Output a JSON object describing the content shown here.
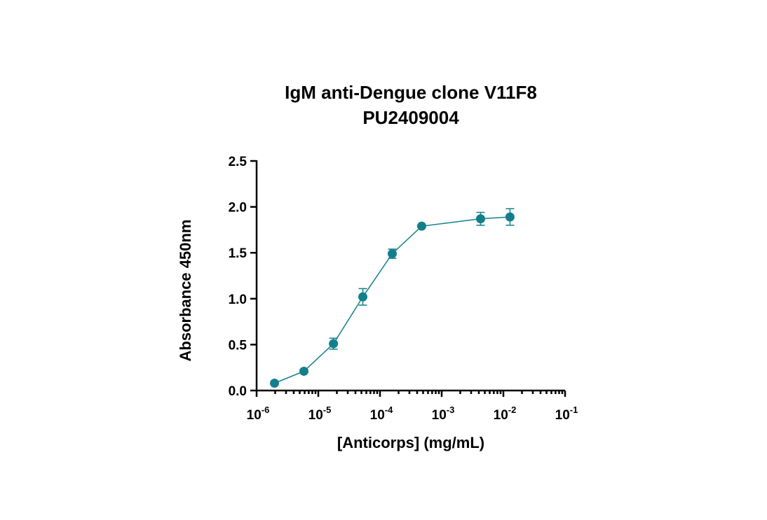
{
  "chart_data": {
    "type": "scatter",
    "title": [
      "IgM anti-Dengue clone V11F8",
      "PU2409004"
    ],
    "xlabel": "[Anticorps] (mg/mL)",
    "ylabel": "Absorbance 450nm",
    "xscale": "log",
    "xlim": [
      1e-06,
      0.1
    ],
    "ylim": [
      0,
      2.5
    ],
    "x_ticks": [
      {
        "value": 1e-06,
        "base": "10",
        "exp": "-6"
      },
      {
        "value": 1e-05,
        "base": "10",
        "exp": "-5"
      },
      {
        "value": 0.0001,
        "base": "10",
        "exp": "-4"
      },
      {
        "value": 0.001,
        "base": "10",
        "exp": "-3"
      },
      {
        "value": 0.01,
        "base": "10",
        "exp": "-2"
      },
      {
        "value": 0.1,
        "base": "10",
        "exp": "-1"
      }
    ],
    "y_ticks": [
      {
        "value": 0.0,
        "label": "0.0"
      },
      {
        "value": 0.5,
        "label": "0.5"
      },
      {
        "value": 1.0,
        "label": "1.0"
      },
      {
        "value": 1.5,
        "label": "1.5"
      },
      {
        "value": 2.0,
        "label": "2.0"
      },
      {
        "value": 2.5,
        "label": "2.5"
      }
    ],
    "grid": false,
    "legend": "none",
    "color": "#137f8c",
    "series": [
      {
        "points": [
          {
            "x": 1.95e-06,
            "y": 0.08,
            "err": 0.0
          },
          {
            "x": 5.85e-06,
            "y": 0.21,
            "err": 0.0
          },
          {
            "x": 1.76e-05,
            "y": 0.51,
            "err": 0.06
          },
          {
            "x": 5.27e-05,
            "y": 1.02,
            "err": 0.09
          },
          {
            "x": 0.000158,
            "y": 1.49,
            "err": 0.05
          },
          {
            "x": 0.000474,
            "y": 1.79,
            "err": 0.0
          },
          {
            "x": 0.00427,
            "y": 1.87,
            "err": 0.07
          },
          {
            "x": 0.0128,
            "y": 1.89,
            "err": 0.09
          }
        ]
      }
    ]
  }
}
